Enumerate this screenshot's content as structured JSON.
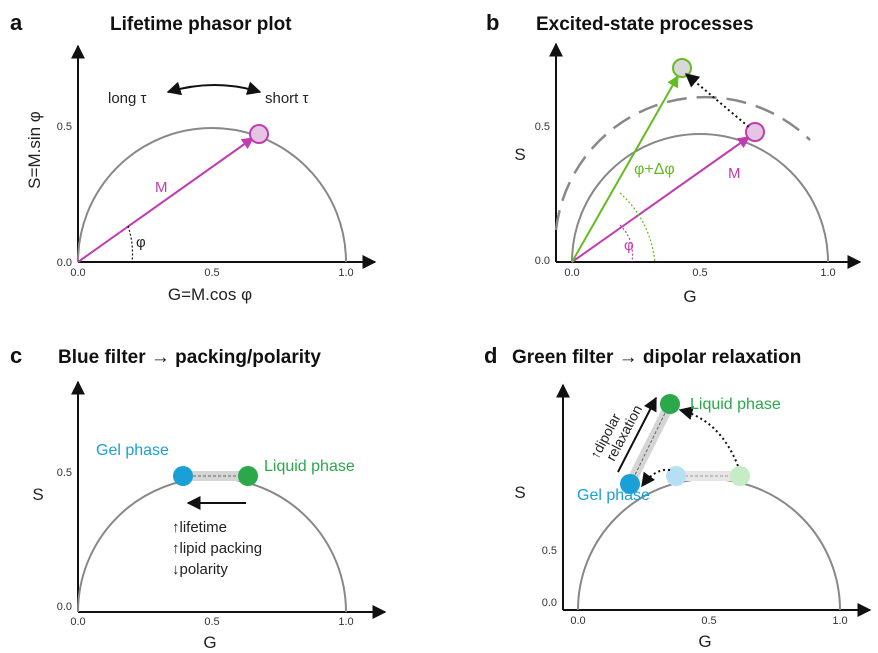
{
  "panels": {
    "a": {
      "label": "a",
      "title": "Lifetime phasor plot",
      "xlabel": "G=M.cos φ",
      "ylabel": "S=M.sin φ",
      "xticks": [
        "0.0",
        "0.5",
        "1.0"
      ],
      "yticks": [
        "0.0",
        "0.5"
      ],
      "vector_label": "M",
      "angle_label": "φ",
      "long_label": "long τ",
      "short_label": "short τ"
    },
    "b": {
      "label": "b",
      "title": "Excited-state processes",
      "xlabel": "G",
      "ylabel": "S",
      "xticks": [
        "0.0",
        "0.5",
        "1.0"
      ],
      "yticks": [
        "0.0",
        "0.5"
      ],
      "vector_label": "M",
      "angle_label": "φ",
      "shift_label": "φ+Δφ"
    },
    "c": {
      "label": "c",
      "title": "Blue filter → packing/polarity",
      "xlabel": "G",
      "ylabel": "S",
      "xticks": [
        "0.0",
        "0.5",
        "1.0"
      ],
      "yticks": [
        "0.0",
        "0.5"
      ],
      "gel_label": "Gel phase",
      "liquid_label": "Liquid phase",
      "notes": [
        "↑lifetime",
        "↑lipid packing",
        "↓polarity"
      ]
    },
    "d": {
      "label": "d",
      "title": "Green filter → dipolar relaxation",
      "xlabel": "G",
      "ylabel": "S",
      "xticks": [
        "0.0",
        "0.5",
        "1.0"
      ],
      "yticks": [
        "0.0",
        "0.5"
      ],
      "gel_label": "Gel phase",
      "liquid_label": "Liquid phase",
      "relax_line1": "↑dipolar",
      "relax_line2": "relaxation"
    }
  },
  "colors": {
    "magenta": "#c03cb0",
    "green": "#66bb22",
    "gel": "#1a9fd6",
    "liquid": "#2aa84a",
    "gel_light": "#b7dff3",
    "liquid_light": "#c6ecc4",
    "circle": "#888888"
  }
}
